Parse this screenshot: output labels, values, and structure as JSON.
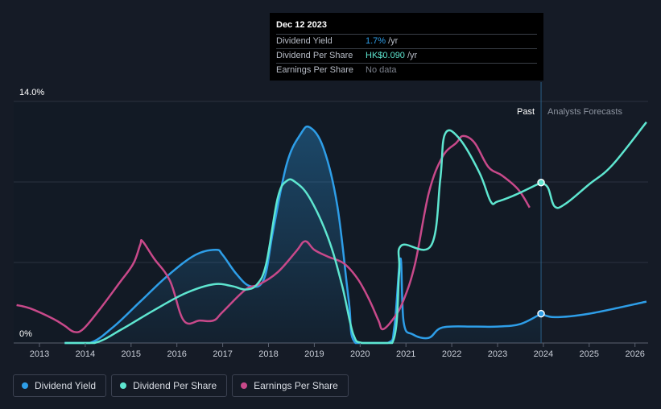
{
  "tooltip": {
    "date": "Dec 12 2023",
    "rows": [
      {
        "label": "Dividend Yield",
        "value": "1.7%",
        "unit": "/yr",
        "color": "#2e9ee8"
      },
      {
        "label": "Dividend Per Share",
        "value": "HK$0.090",
        "unit": "/yr",
        "color": "#5ee6d0"
      },
      {
        "label": "Earnings Per Share",
        "value": "No data",
        "unit": "",
        "color": "#7c818c"
      }
    ]
  },
  "legend": [
    {
      "label": "Dividend Yield",
      "color": "#2e9ee8"
    },
    {
      "label": "Dividend Per Share",
      "color": "#5ee6d0"
    },
    {
      "label": "Earnings Per Share",
      "color": "#c8498a"
    }
  ],
  "chart_data": {
    "type": "line",
    "title": "",
    "ylabel_top": "14.0%",
    "ylabel_bottom": "0%",
    "ylim": [
      0,
      14
    ],
    "xlim": [
      2012.5,
      2026.25
    ],
    "x_ticks": [
      "2013",
      "2014",
      "2015",
      "2016",
      "2017",
      "2018",
      "2019",
      "2020",
      "2021",
      "2022",
      "2023",
      "2024",
      "2025",
      "2026"
    ],
    "past_label": "Past",
    "forecast_label": "Analysts Forecasts",
    "forecast_start": 2023.95,
    "past_band_start": 2022.95,
    "highlight_x": 2023.95,
    "series": [
      {
        "name": "Dividend Yield",
        "color": "#2e9ee8",
        "fill": true,
        "points": [
          [
            2013.55,
            0
          ],
          [
            2014.1,
            0
          ],
          [
            2014.6,
            0.9
          ],
          [
            2015.2,
            2.4
          ],
          [
            2015.8,
            3.9
          ],
          [
            2016.4,
            5.1
          ],
          [
            2016.85,
            5.4
          ],
          [
            2017.0,
            5.1
          ],
          [
            2017.3,
            4.0
          ],
          [
            2017.6,
            3.3
          ],
          [
            2017.9,
            3.7
          ],
          [
            2018.1,
            6.5
          ],
          [
            2018.4,
            10.4
          ],
          [
            2018.7,
            12.1
          ],
          [
            2018.9,
            12.5
          ],
          [
            2019.2,
            11.3
          ],
          [
            2019.5,
            8.0
          ],
          [
            2019.75,
            2.5
          ],
          [
            2019.9,
            0
          ],
          [
            2020.6,
            0
          ],
          [
            2020.75,
            1.0
          ],
          [
            2020.88,
            4.9
          ],
          [
            2020.95,
            1.2
          ],
          [
            2021.15,
            0.5
          ],
          [
            2021.5,
            0.3
          ],
          [
            2021.8,
            0.9
          ],
          [
            2022.5,
            0.95
          ],
          [
            2023.0,
            0.95
          ],
          [
            2023.5,
            1.1
          ],
          [
            2023.95,
            1.7
          ]
        ]
      },
      {
        "name": "Dividend Yield Forecast",
        "color": "#2e9ee8",
        "fill": false,
        "points": [
          [
            2023.95,
            1.7
          ],
          [
            2024.25,
            1.5
          ],
          [
            2025.0,
            1.7
          ],
          [
            2026.25,
            2.4
          ]
        ]
      },
      {
        "name": "Dividend Per Share",
        "color": "#5ee6d0",
        "fill": false,
        "points": [
          [
            2013.55,
            0
          ],
          [
            2014.2,
            0
          ],
          [
            2014.8,
            0.8
          ],
          [
            2015.5,
            1.9
          ],
          [
            2016.2,
            2.9
          ],
          [
            2016.8,
            3.4
          ],
          [
            2017.2,
            3.3
          ],
          [
            2017.5,
            3.1
          ],
          [
            2017.75,
            3.4
          ],
          [
            2017.95,
            4.6
          ],
          [
            2018.2,
            8.4
          ],
          [
            2018.4,
            9.4
          ],
          [
            2018.6,
            9.3
          ],
          [
            2018.9,
            8.4
          ],
          [
            2019.3,
            6.1
          ],
          [
            2019.6,
            3.4
          ],
          [
            2019.85,
            0.5
          ],
          [
            2020.05,
            0
          ],
          [
            2020.7,
            0
          ],
          [
            2020.85,
            4.0
          ],
          [
            2020.9,
            5.65
          ],
          [
            2021.55,
            5.65
          ],
          [
            2021.75,
            9.5
          ],
          [
            2021.85,
            12.1
          ],
          [
            2022.15,
            11.9
          ],
          [
            2022.6,
            9.9
          ],
          [
            2022.85,
            8.2
          ],
          [
            2023.0,
            8.2
          ],
          [
            2023.4,
            8.6
          ],
          [
            2023.95,
            9.3
          ]
        ]
      },
      {
        "name": "Dividend Per Share Forecast",
        "color": "#5ee6d0",
        "fill": false,
        "points": [
          [
            2023.95,
            9.3
          ],
          [
            2024.1,
            9.0
          ],
          [
            2024.25,
            7.9
          ],
          [
            2024.5,
            8.1
          ],
          [
            2025.0,
            9.2
          ],
          [
            2025.5,
            10.3
          ],
          [
            2026.25,
            12.8
          ]
        ]
      },
      {
        "name": "Earnings Per Share",
        "color": "#c8498a",
        "fill": false,
        "points": [
          [
            2012.5,
            2.2
          ],
          [
            2012.8,
            2.0
          ],
          [
            2013.3,
            1.4
          ],
          [
            2013.55,
            1.0
          ],
          [
            2013.75,
            0.65
          ],
          [
            2013.95,
            0.8
          ],
          [
            2014.3,
            1.9
          ],
          [
            2014.75,
            3.5
          ],
          [
            2015.05,
            4.6
          ],
          [
            2015.2,
            5.7
          ],
          [
            2015.25,
            5.9
          ],
          [
            2015.5,
            4.9
          ],
          [
            2015.85,
            3.6
          ],
          [
            2016.15,
            1.3
          ],
          [
            2016.5,
            1.3
          ],
          [
            2016.8,
            1.3
          ],
          [
            2017.0,
            1.8
          ],
          [
            2017.5,
            3.1
          ],
          [
            2017.8,
            3.4
          ],
          [
            2018.2,
            4.1
          ],
          [
            2018.6,
            5.3
          ],
          [
            2018.8,
            5.9
          ],
          [
            2019.0,
            5.4
          ],
          [
            2019.3,
            5.0
          ],
          [
            2019.65,
            4.6
          ],
          [
            2019.95,
            3.7
          ],
          [
            2020.2,
            2.5
          ],
          [
            2020.4,
            1.3
          ],
          [
            2020.5,
            0.8
          ],
          [
            2020.75,
            1.5
          ],
          [
            2020.95,
            2.5
          ],
          [
            2021.2,
            4.6
          ],
          [
            2021.5,
            8.7
          ],
          [
            2021.8,
            10.8
          ],
          [
            2022.1,
            11.6
          ],
          [
            2022.25,
            12.0
          ],
          [
            2022.5,
            11.6
          ],
          [
            2022.8,
            10.2
          ],
          [
            2023.1,
            9.7
          ],
          [
            2023.45,
            8.9
          ],
          [
            2023.7,
            7.85
          ]
        ]
      }
    ]
  }
}
